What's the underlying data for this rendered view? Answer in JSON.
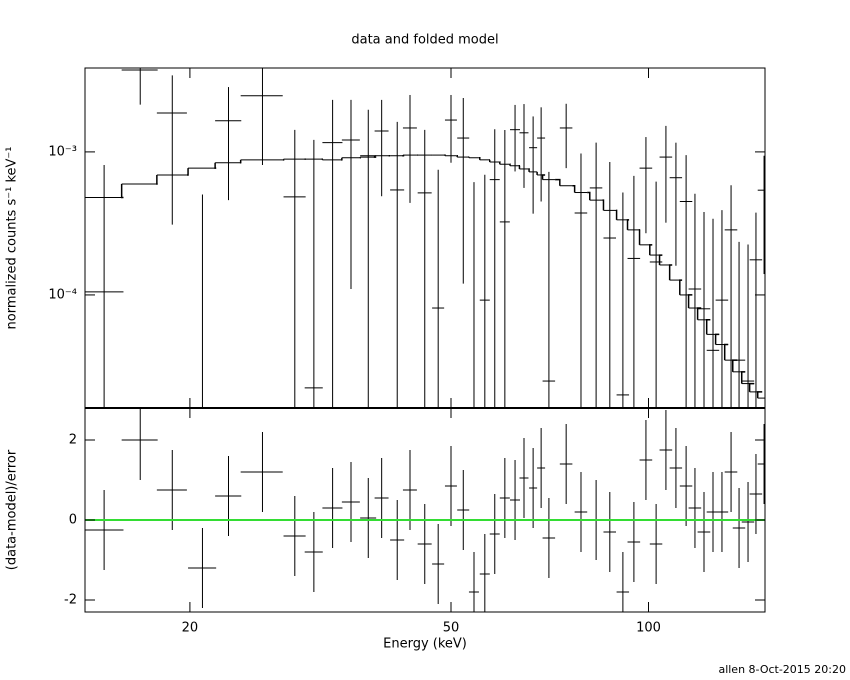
{
  "footer": "allen  8-Oct-2015 20:20",
  "chart_data": [
    {
      "type": "errorbar",
      "title": "data and folded model",
      "ylabel": "normalized counts s⁻¹ keV⁻¹",
      "log_x": true,
      "log_y": true,
      "color": "#000000",
      "model_color": "#000000",
      "xlim": [
        13.84,
        150.5
      ],
      "ylim": [
        1.62e-05,
        0.00386
      ],
      "yticks": [
        {
          "value": 0.001,
          "label": "10⁻³"
        },
        {
          "value": 0.0001,
          "label": "10⁻⁴"
        }
      ],
      "x": [
        14.8,
        16.8,
        18.8,
        20.9,
        22.9,
        25.8,
        28.9,
        30.9,
        33.0,
        35.2,
        37.4,
        39.2,
        41.4,
        43.3,
        45.6,
        47.8,
        50.0,
        52.2,
        54.2,
        56.3,
        58.3,
        60.4,
        62.6,
        64.6,
        66.7,
        68.6,
        70.5,
        74.9,
        78.9,
        83.2,
        87.3,
        91.4,
        95.0,
        99.1,
        102.7,
        106.3,
        110.1,
        114.1,
        117.7,
        121.5,
        125.4,
        129.4,
        133.6,
        137.4,
        141.8,
        145.8,
        150.0
      ],
      "xerr": [
        1.04,
        1.06,
        0.99,
        1.03,
        1.05,
        1.9,
        1.12,
        0.98,
        1.16,
        1.11,
        1.05,
        0.96,
        1.02,
        1.06,
        1.12,
        1.01,
        1.05,
        1.1,
        0.95,
        0.99,
        1.02,
        1.06,
        1.1,
        1.02,
        0.94,
        0.96,
        1.55,
        1.65,
        1.74,
        1.83,
        1.92,
        2.0,
        2.1,
        2.2,
        2.25,
        2.35,
        2.4,
        2.5,
        2.6,
        2.7,
        2.75,
        2.85,
        2.95,
        3.0,
        3.1,
        3.2,
        3.3
      ],
      "values": [
        0.000105,
        0.00374,
        0.00187,
        1.4e-05,
        0.00165,
        0.00247,
        0.000485,
        2.24e-05,
        0.00116,
        0.00121,
        0.00094,
        0.0014,
        0.000542,
        0.00147,
        0.000517,
        8.1e-05,
        0.00167,
        0.00125,
        1.5e-05,
        9.2e-05,
        0.00064,
        0.000324,
        0.00143,
        0.00136,
        0.00107,
        0.00125,
        2.5e-05,
        0.00147,
        0.000374,
        0.00056,
        0.00025,
        2e-05,
        0.00018,
        0.00077,
        0.00017,
        0.00092,
        0.00066,
        0.00045,
        0.00011,
        8e-05,
        4.1e-05,
        9.2e-05,
        0.000285,
        3.5e-05,
        2.5e-05,
        0.000176,
        0.00054
      ],
      "yerr": [
        0.000705,
        0.0016,
        0.00156,
        0.00049,
        0.00119,
        0.00166,
        0.00094,
        0.00119,
        0.00115,
        0.0011,
        0.00103,
        0.00091,
        0.00108,
        0.00103,
        0.00091,
        0.00067,
        0.00083,
        0.00113,
        0.0006,
        0.0006,
        0.0008,
        0.0011,
        0.0007,
        0.0008,
        0.0007,
        0.0008,
        0.0007,
        0.0007,
        0.0006,
        0.0006,
        0.0006,
        0.0005,
        0.0005,
        0.0005,
        0.00045,
        0.0006,
        0.0005,
        0.0005,
        0.0004,
        0.0003,
        0.0003,
        0.0003,
        0.0003,
        0.0002,
        0.0002,
        0.0002,
        0.0004
      ],
      "model": [
        0.00048,
        0.000597,
        0.00069,
        0.00077,
        0.00084,
        0.00088,
        0.00089,
        0.00089,
        0.00088,
        0.00091,
        0.00092,
        0.00094,
        0.00094,
        0.00095,
        0.00095,
        0.00095,
        0.00094,
        0.00092,
        0.00091,
        0.00088,
        0.00085,
        0.00082,
        0.0008,
        0.00076,
        0.000725,
        0.00069,
        0.00064,
        0.00058,
        0.00052,
        0.00046,
        0.00039,
        0.000335,
        0.000285,
        0.000224,
        0.00019,
        0.000162,
        0.000127,
        0.0001,
        8.1e-05,
        6.7e-05,
        5.3e-05,
        4.5e-05,
        3.5e-05,
        2.9e-05,
        2.4e-05,
        2.1e-05,
        1.9e-05
      ]
    },
    {
      "type": "residual",
      "xlabel": "Energy (keV)",
      "ylabel": "(data-model)/error",
      "log_x": true,
      "color": "#000000",
      "reference_line": 0,
      "reference_color": "#33dd33",
      "xlim": [
        13.84,
        150.5
      ],
      "xticks": [
        20,
        50,
        100
      ],
      "ylim": [
        -2.3,
        2.8
      ],
      "yticks": [
        -2,
        0,
        2
      ],
      "values": [
        -0.25,
        2.0,
        0.75,
        -1.2,
        0.6,
        1.2,
        -0.4,
        -0.8,
        0.3,
        0.45,
        0.05,
        0.55,
        -0.5,
        0.75,
        -0.6,
        -1.1,
        0.85,
        0.25,
        -1.8,
        -1.35,
        -0.35,
        0.55,
        0.5,
        1.05,
        0.8,
        1.3,
        -0.45,
        1.4,
        0.2,
        0,
        -0.3,
        -1.8,
        -0.55,
        1.5,
        -0.6,
        1.75,
        1.3,
        0.85,
        0.3,
        -0.3,
        0.2,
        0.2,
        1.2,
        -0.2,
        -0.05,
        0.65,
        1.4
      ],
      "yerr": [
        1,
        1,
        1,
        1,
        1,
        1,
        1,
        1,
        1,
        1,
        1,
        1,
        1,
        1,
        1,
        1,
        1,
        1,
        1,
        1,
        1,
        1,
        1,
        1,
        1,
        1,
        1,
        1,
        1,
        1,
        1,
        1,
        1,
        1,
        1,
        1,
        1,
        1,
        1,
        1,
        1,
        1,
        1,
        1,
        1,
        1,
        1
      ]
    }
  ]
}
